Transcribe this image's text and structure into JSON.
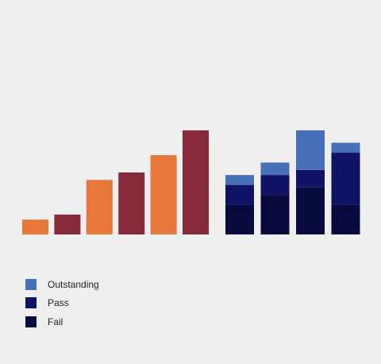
{
  "chart_data": [
    {
      "type": "bar",
      "series": [
        {
          "values": [
            3,
            4,
            11,
            12.5,
            16,
            21
          ]
        }
      ],
      "bar_colors": [
        "#e8773a",
        "#862a3c",
        "#e8773a",
        "#862a3c",
        "#e8773a",
        "#862a3c"
      ],
      "ylim": [
        0,
        21
      ],
      "grid": false
    },
    {
      "type": "bar",
      "stacked": true,
      "series": [
        {
          "name": "Fail",
          "color": "#08093c",
          "values": [
            6,
            8,
            9.5,
            6
          ]
        },
        {
          "name": "Pass",
          "color": "#101365",
          "values": [
            4,
            4,
            3.5,
            10.5
          ]
        },
        {
          "name": "Outstanding",
          "color": "#4870b8",
          "values": [
            2,
            2.5,
            8,
            2
          ]
        }
      ],
      "ylim": [
        0,
        21
      ],
      "grid": false,
      "legend": "bottom-left"
    }
  ],
  "legend": {
    "items": [
      {
        "label": "Outstanding",
        "color": "#4870b8"
      },
      {
        "label": "Pass",
        "color": "#101365"
      },
      {
        "label": "Fail",
        "color": "#08093c"
      }
    ]
  }
}
